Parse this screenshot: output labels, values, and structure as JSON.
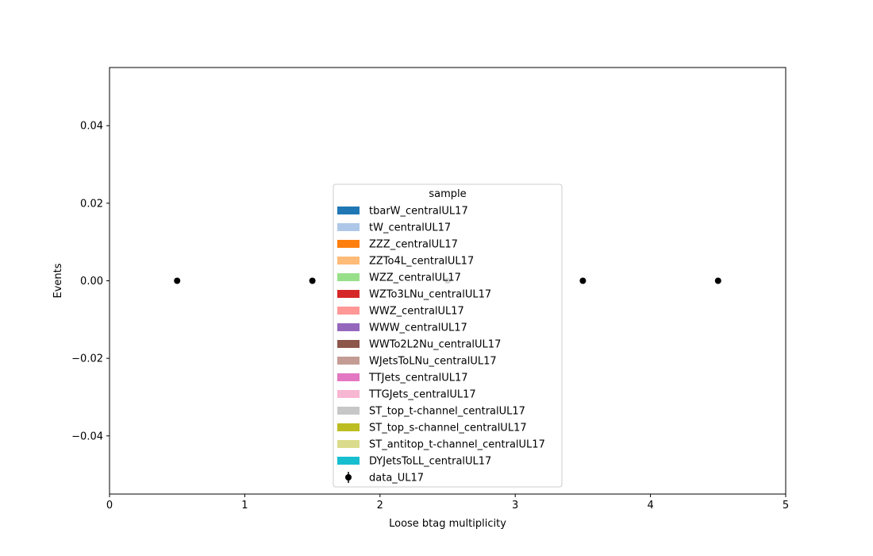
{
  "chart_data": {
    "type": "scatter",
    "title": "",
    "xlabel": "Loose btag multiplicity",
    "ylabel": "Events",
    "xlim": [
      0,
      5
    ],
    "ylim": [
      -0.055,
      0.055
    ],
    "xticks": [
      0,
      1,
      2,
      3,
      4,
      5
    ],
    "xtick_labels": [
      "0",
      "1",
      "2",
      "3",
      "4",
      "5"
    ],
    "yticks": [
      0.04,
      0.02,
      0.0,
      -0.02,
      -0.04
    ],
    "ytick_labels": [
      "0.04",
      "0.02",
      "0.00",
      "−0.02",
      "−0.04"
    ],
    "grid": false,
    "legend": {
      "title": "sample",
      "placement": "center-bottom",
      "stack_entries": [
        {
          "label": "tbarW_centralUL17",
          "color": "#1f77b4"
        },
        {
          "label": "tW_centralUL17",
          "color": "#aec7e8"
        },
        {
          "label": "ZZZ_centralUL17",
          "color": "#ff7f0e"
        },
        {
          "label": "ZZTo4L_centralUL17",
          "color": "#ffbb78"
        },
        {
          "label": "WZZ_centralUL17",
          "color": "#98df8a"
        },
        {
          "label": "WZTo3LNu_centralUL17",
          "color": "#d62728"
        },
        {
          "label": "WWZ_centralUL17",
          "color": "#ff9896"
        },
        {
          "label": "WWW_centralUL17",
          "color": "#9467bd"
        },
        {
          "label": "WWTo2L2Nu_centralUL17",
          "color": "#8c564b"
        },
        {
          "label": "WJetsToLNu_centralUL17",
          "color": "#c49c94"
        },
        {
          "label": "TTJets_centralUL17",
          "color": "#e377c2"
        },
        {
          "label": "TTGJets_centralUL17",
          "color": "#f7b6d2"
        },
        {
          "label": "ST_top_t-channel_centralUL17",
          "color": "#c7c7c7"
        },
        {
          "label": "ST_top_s-channel_centralUL17",
          "color": "#bcbd22"
        },
        {
          "label": "ST_antitop_t-channel_centralUL17",
          "color": "#dbdb8d"
        },
        {
          "label": "DYJetsToLL_centralUL17",
          "color": "#17becf"
        }
      ],
      "data_entry": {
        "label": "data_UL17",
        "color": "#000000"
      }
    },
    "series": [
      {
        "name": "data_UL17",
        "color": "#000000",
        "x": [
          0.5,
          1.5,
          2.5,
          3.5,
          4.5
        ],
        "y": [
          0,
          0,
          0,
          0,
          0
        ]
      }
    ]
  }
}
